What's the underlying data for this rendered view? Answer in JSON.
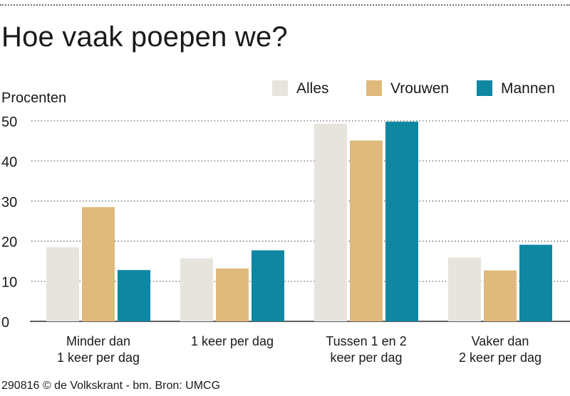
{
  "header": {
    "title": "Hoe vaak poepen we?"
  },
  "footer": {
    "credit": "290816 © de Volkskrant - bm. Bron: UMCG"
  },
  "colors": {
    "alles": "#e6e4dd",
    "vrouwen": "#dfba7c",
    "mannen": "#0f87a2",
    "grid": "#666666",
    "text": "#1a1a1a"
  },
  "chart_data": {
    "type": "bar",
    "title": "Hoe vaak poepen we?",
    "ylabel": "Procenten",
    "xlabel": "",
    "ylim": [
      0,
      50
    ],
    "yticks": [
      0,
      10,
      20,
      30,
      40,
      50
    ],
    "grid": true,
    "legend_position": "top-right",
    "categories": [
      [
        "Minder dan",
        "1 keer per dag"
      ],
      [
        "1 keer per dag"
      ],
      [
        "Tussen 1 en 2",
        "keer per dag"
      ],
      [
        "Vaker dan",
        "2 keer per dag"
      ]
    ],
    "series": [
      {
        "name": "Alles",
        "color": "#e6e4dd",
        "values": [
          18.5,
          15.7,
          49.3,
          15.9
        ]
      },
      {
        "name": "Vrouwen",
        "color": "#dfba7c",
        "values": [
          28.5,
          13.2,
          45.1,
          12.7
        ]
      },
      {
        "name": "Mannen",
        "color": "#0f87a2",
        "values": [
          12.8,
          17.7,
          49.8,
          19.1
        ]
      }
    ]
  }
}
